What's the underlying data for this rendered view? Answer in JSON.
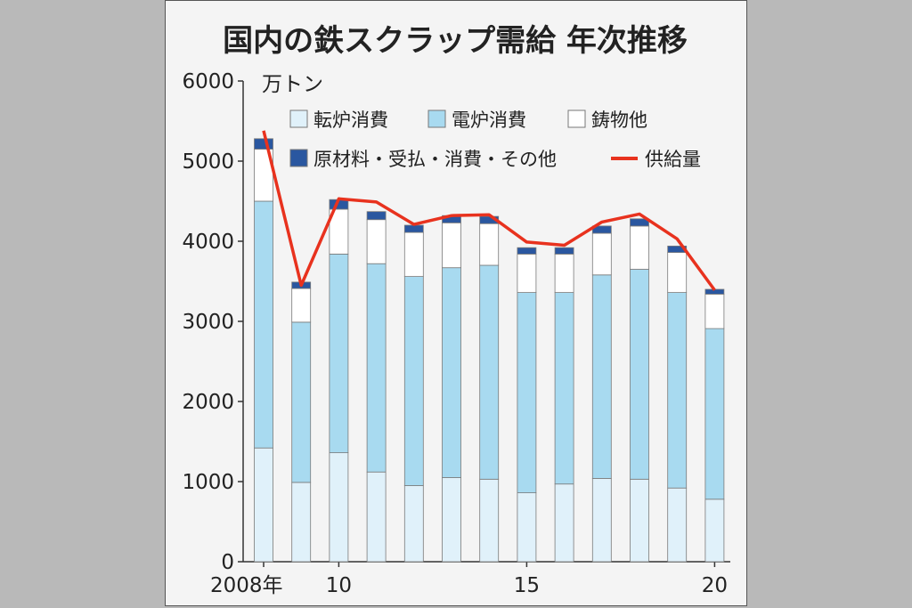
{
  "chart_data": {
    "type": "bar",
    "title": "国内の鉄スクラップ需給 年次推移",
    "unit_label": "万トン",
    "ylim": [
      0,
      6000
    ],
    "y_ticks": [
      0,
      1000,
      2000,
      3000,
      4000,
      5000,
      6000
    ],
    "years": [
      2008,
      2009,
      2010,
      2011,
      2012,
      2013,
      2014,
      2015,
      2016,
      2017,
      2018,
      2019,
      2020
    ],
    "x_tick_labels": [
      {
        "year": 2008,
        "label": "2008年"
      },
      {
        "year": 2010,
        "label": "10"
      },
      {
        "year": 2015,
        "label": "15"
      },
      {
        "year": 2020,
        "label": "20"
      }
    ],
    "series": [
      {
        "name": "転炉消費",
        "color": "#e0f1fa",
        "values": [
          1420,
          990,
          1360,
          1120,
          950,
          1050,
          1030,
          860,
          970,
          1040,
          1030,
          920,
          780
        ]
      },
      {
        "name": "電炉消費",
        "color": "#a8daf0",
        "values": [
          3080,
          2000,
          2480,
          2600,
          2610,
          2620,
          2670,
          2500,
          2390,
          2540,
          2620,
          2440,
          2130
        ]
      },
      {
        "name": "鋳物他",
        "color": "#ffffff",
        "values": [
          650,
          420,
          560,
          550,
          550,
          560,
          520,
          480,
          480,
          520,
          540,
          500,
          430
        ]
      },
      {
        "name": "原材料・受払・消費・その他",
        "color": "#2a57a0",
        "values": [
          130,
          80,
          120,
          100,
          90,
          90,
          90,
          80,
          80,
          90,
          90,
          80,
          60
        ]
      }
    ],
    "line_series": {
      "name": "供給量",
      "color": "#e8321e",
      "values": [
        5380,
        3450,
        4530,
        4490,
        4210,
        4320,
        4330,
        3990,
        3950,
        4240,
        4340,
        4030,
        3390
      ]
    },
    "legend": {
      "placement": "top"
    },
    "grid": false
  }
}
